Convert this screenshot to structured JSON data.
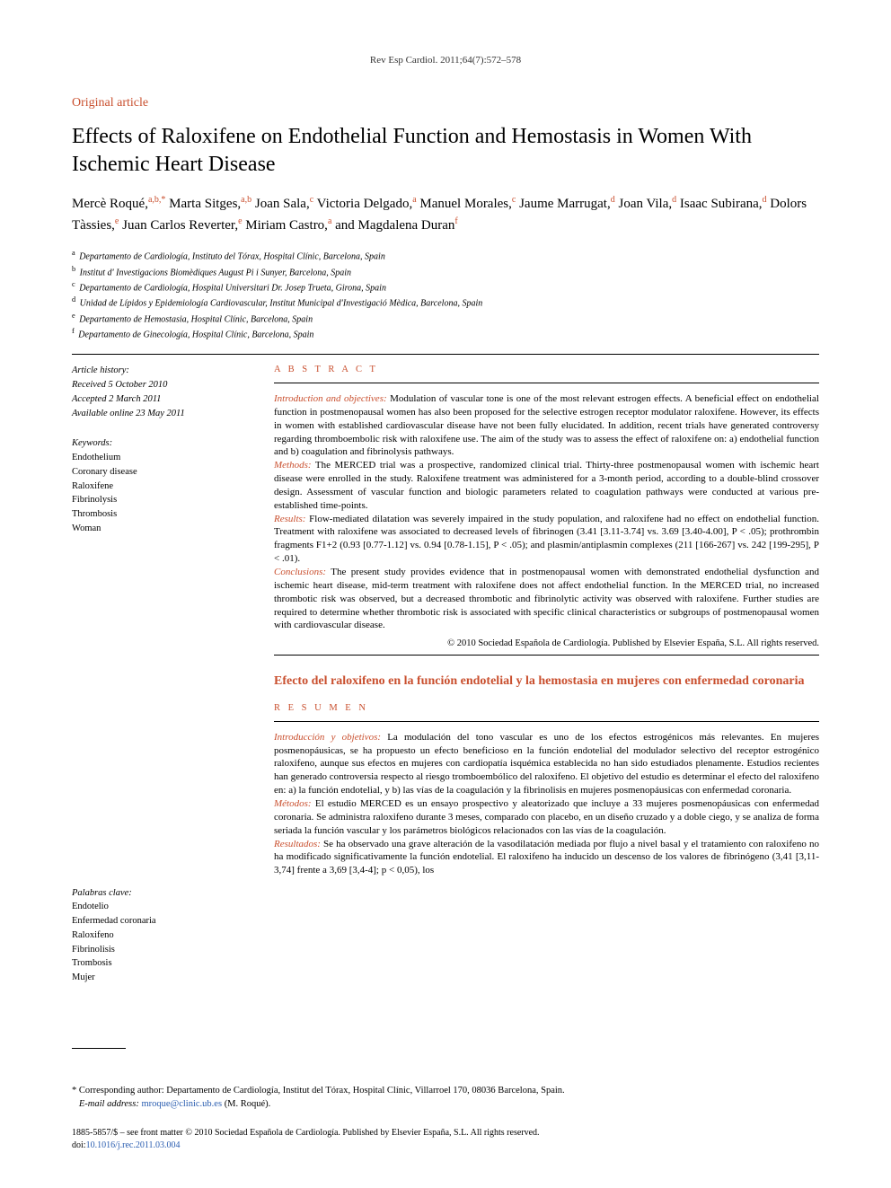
{
  "journal_ref": "Rev Esp Cardiol. 2011;64(7):572–578",
  "article_type": "Original article",
  "title": "Effects of Raloxifene on Endothelial Function and Hemostasis in Women With Ischemic Heart Disease",
  "authors_html": "Mercè Roqué,<sup>a,b,*</sup> Marta Sitges,<sup>a,b</sup> Joan Sala,<sup>c</sup> Victoria Delgado,<sup>a</sup> Manuel Morales,<sup>c</sup> Jaume Marrugat,<sup>d</sup> Joan Vila,<sup>d</sup> Isaac Subirana,<sup>d</sup> Dolors Tàssies,<sup>e</sup> Juan Carlos Reverter,<sup>e</sup> Miriam Castro,<sup>a</sup> and Magdalena Duran<sup>f</sup>",
  "affiliations": [
    {
      "sup": "a",
      "text": "Departamento de Cardiología, Instituto del Tórax, Hospital Clínic, Barcelona, Spain"
    },
    {
      "sup": "b",
      "text": "Institut d' Investigacions Biomèdiques August Pi i Sunyer, Barcelona, Spain"
    },
    {
      "sup": "c",
      "text": "Departamento de Cardiología, Hospital Universitari Dr. Josep Trueta, Girona, Spain"
    },
    {
      "sup": "d",
      "text": "Unidad de Lípidos y Epidemiología Cardiovascular, Institut Municipal d'Investigació Mèdica, Barcelona, Spain"
    },
    {
      "sup": "e",
      "text": "Departamento de Hemostasia, Hospital Clínic, Barcelona, Spain"
    },
    {
      "sup": "f",
      "text": "Departamento de Ginecología, Hospital Clínic, Barcelona, Spain"
    }
  ],
  "history": {
    "heading": "Article history:",
    "received": "Received 5 October 2010",
    "accepted": "Accepted 2 March 2011",
    "online": "Available online 23 May 2011"
  },
  "keywords_en": {
    "heading": "Keywords:",
    "items": [
      "Endothelium",
      "Coronary disease",
      "Raloxifene",
      "Fibrinolysis",
      "Thrombosis",
      "Woman"
    ]
  },
  "keywords_es": {
    "heading": "Palabras clave:",
    "items": [
      "Endotelio",
      "Enfermedad coronaria",
      "Raloxifeno",
      "Fibrinolisis",
      "Trombosis",
      "Mujer"
    ]
  },
  "abstract": {
    "label": "A B S T R A C T",
    "intro_lead": "Introduction and objectives:",
    "intro": " Modulation of vascular tone is one of the most relevant estrogen effects. A beneficial effect on endothelial function in postmenopausal women has also been proposed for the selective estrogen receptor modulator raloxifene. However, its effects in women with established cardiovascular disease have not been fully elucidated. In addition, recent trials have generated controversy regarding thromboembolic risk with raloxifene use. The aim of the study was to assess the effect of raloxifene on: a) endothelial function and b) coagulation and fibrinolysis pathways.",
    "methods_lead": "Methods:",
    "methods": " The MERCED trial was a prospective, randomized clinical trial. Thirty-three postmenopausal women with ischemic heart disease were enrolled in the study. Raloxifene treatment was administered for a 3-month period, according to a double-blind crossover design. Assessment of vascular function and biologic parameters related to coagulation pathways were conducted at various pre-established time-points.",
    "results_lead": "Results:",
    "results": " Flow-mediated dilatation was severely impaired in the study population, and raloxifene had no effect on endothelial function. Treatment with raloxifene was associated to decreased levels of fibrinogen (3.41 [3.11-3.74] vs. 3.69 [3.40-4.00], P < .05); prothrombin fragments F1+2 (0.93 [0.77-1.12] vs. 0.94 [0.78-1.15], P < .05); and plasmin/antiplasmin complexes (211 [166-267] vs. 242 [199-295], P < .01).",
    "conclusions_lead": "Conclusions:",
    "conclusions": " The present study provides evidence that in postmenopausal women with demonstrated endothelial dysfunction and ischemic heart disease, mid-term treatment with raloxifene does not affect endothelial function. In the MERCED trial, no increased thrombotic risk was observed, but a decreased thrombotic and fibrinolytic activity was observed with raloxifene. Further studies are required to determine whether thrombotic risk is associated with specific clinical characteristics or subgroups of postmenopausal women with cardiovascular disease.",
    "copyright": "© 2010 Sociedad Española de Cardiología. Published by Elsevier España, S.L. All rights reserved."
  },
  "spanish_title": "Efecto del raloxifeno en la función endotelial y la hemostasia en mujeres con enfermedad coronaria",
  "resumen": {
    "label": "R E S U M E N",
    "intro_lead": "Introducción y objetivos:",
    "intro": " La modulación del tono vascular es uno de los efectos estrogénicos más relevantes. En mujeres posmenopáusicas, se ha propuesto un efecto beneficioso en la función endotelial del modulador selectivo del receptor estrogénico raloxifeno, aunque sus efectos en mujeres con cardiopatía isquémica establecida no han sido estudiados plenamente. Estudios recientes han generado controversia respecto al riesgo tromboembólico del raloxifeno. El objetivo del estudio es determinar el efecto del raloxifeno en: a) la función endotelial, y b) las vías de la coagulación y la fibrinolisis en mujeres posmenopáusicas con enfermedad coronaria.",
    "methods_lead": "Métodos:",
    "methods": " El estudio MERCED es un ensayo prospectivo y aleatorizado que incluye a 33 mujeres posmenopáusicas con enfermedad coronaria. Se administra raloxifeno durante 3 meses, comparado con placebo, en un diseño cruzado y a doble ciego, y se analiza de forma seriada la función vascular y los parámetros biológicos relacionados con las vías de la coagulación.",
    "results_lead": "Resultados:",
    "results": " Se ha observado una grave alteración de la vasodilatación mediada por flujo a nivel basal y el tratamiento con raloxifeno no ha modificado significativamente la función endotelial. El raloxifeno ha inducido un descenso de los valores de fibrinógeno (3,41 [3,11-3,74] frente a 3,69 [3,4-4]; p < 0,05), los"
  },
  "corresponding": {
    "star": "*",
    "text": " Corresponding author: Departamento de Cardiología, Institut del Tórax, Hospital Clínic, Villarroel 170, 08036 Barcelona, Spain.",
    "email_label": "E-mail address: ",
    "email": "mroque@clinic.ub.es",
    "email_suffix": " (M. Roqué)."
  },
  "issn_line": {
    "prefix": "1885-5857/$ – see front matter © 2010 Sociedad Española de Cardiología. Published by Elsevier España, S.L. All rights reserved.",
    "doi_label": "doi:",
    "doi": "10.1016/j.rec.2011.03.004"
  }
}
